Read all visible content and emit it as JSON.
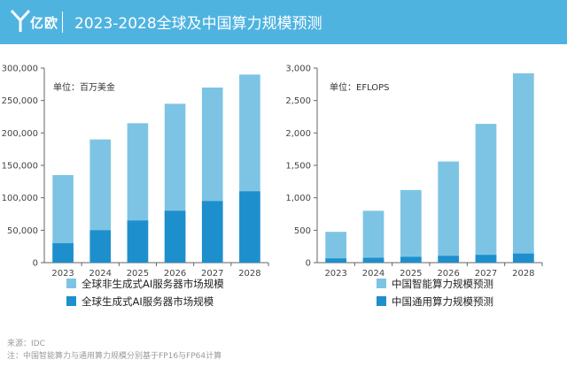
{
  "header": {
    "logo_text": "亿欧",
    "title": "2023-2028全球及中国算力规模预测"
  },
  "colors": {
    "header_bg": "#4fb3e0",
    "light_bar": "#7dc4e4",
    "dark_bar": "#1e8fcd",
    "axis": "#555555",
    "grid_text": "#444444"
  },
  "footer": {
    "source": "来源：IDC",
    "note": "注：中国智能算力与通用算力规模分别基于FP16与FP64计算"
  },
  "chart_data": [
    {
      "type": "bar",
      "stacked": false,
      "overlay": true,
      "unit_label": "单位：百万美金",
      "categories": [
        "2023",
        "2024",
        "2025",
        "2026",
        "2027",
        "2028"
      ],
      "ylim": [
        0,
        300000
      ],
      "yticks": [
        0,
        50000,
        100000,
        150000,
        200000,
        250000,
        300000
      ],
      "ytick_labels": [
        "0",
        "50,000",
        "100,000",
        "150,000",
        "200,000",
        "250,000",
        "300,000"
      ],
      "series": [
        {
          "name": "全球非生成式AI服务器市场规模",
          "values": [
            135000,
            190000,
            215000,
            245000,
            270000,
            290000
          ],
          "color": "#7dc4e4"
        },
        {
          "name": "全球生成式AI服务器市场规模",
          "values": [
            30000,
            50000,
            65000,
            80000,
            95000,
            110000
          ],
          "color": "#1e8fcd"
        }
      ]
    },
    {
      "type": "bar",
      "stacked": false,
      "overlay": true,
      "unit_label": "单位：EFLOPS",
      "categories": [
        "2023",
        "2024",
        "2025",
        "2026",
        "2027",
        "2028"
      ],
      "ylim": [
        0,
        3000
      ],
      "yticks": [
        0,
        500,
        1000,
        1500,
        2000,
        2500,
        3000
      ],
      "ytick_labels": [
        "0",
        "500",
        "1,000",
        "1,500",
        "2,000",
        "2,500",
        "3,000"
      ],
      "series": [
        {
          "name": "中国智能算力规模预测",
          "values": [
            475,
            800,
            1120,
            1560,
            2140,
            2920
          ],
          "color": "#7dc4e4"
        },
        {
          "name": "中国通用算力规模预测",
          "values": [
            65,
            75,
            90,
            105,
            120,
            140
          ],
          "color": "#1e8fcd"
        }
      ]
    }
  ]
}
